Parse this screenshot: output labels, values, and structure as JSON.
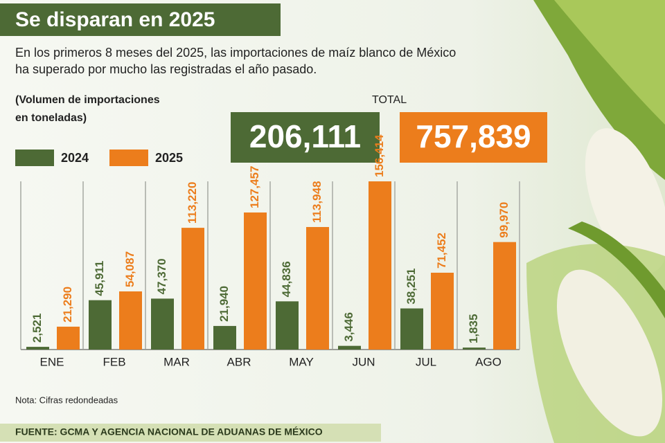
{
  "chart_data": {
    "type": "bar",
    "title": "Se disparan en 2025",
    "subtitle": [
      "En los primeros 8 meses del 2025, las importaciones de maíz blanco de México",
      "ha superado por mucho las registradas el año pasado."
    ],
    "ylabel": [
      "(Volumen de importaciones",
      "en toneladas)"
    ],
    "total_title": "TOTAL",
    "categories": [
      "ENE",
      "FEB",
      "MAR",
      "ABR",
      "MAY",
      "JUN",
      "JUL",
      "AGO"
    ],
    "series": [
      {
        "name": "2024",
        "color": "#4d6a35",
        "values": [
          2521,
          45911,
          47370,
          21940,
          44836,
          3446,
          38251,
          1835
        ],
        "value_labels": [
          "2,521",
          "45,911",
          "47,370",
          "21,940",
          "44,836",
          "3,446",
          "38,251",
          "1,835"
        ],
        "total": 206111,
        "total_label": "206,111"
      },
      {
        "name": "2025",
        "color": "#ec7d1c",
        "values": [
          21290,
          54087,
          113220,
          127457,
          113948,
          156414,
          71452,
          99970
        ],
        "value_labels": [
          "21,290",
          "54,087",
          "113,220",
          "127,457",
          "113,948",
          "156,414",
          "71,452",
          "99,970"
        ],
        "total": 757839,
        "total_label": "757,839"
      }
    ],
    "note": "Nota: Cifras redondeadas",
    "source": "FUENTE: GCMA Y AGENCIA NACIONAL DE ADUANAS DE MÉXICO"
  }
}
